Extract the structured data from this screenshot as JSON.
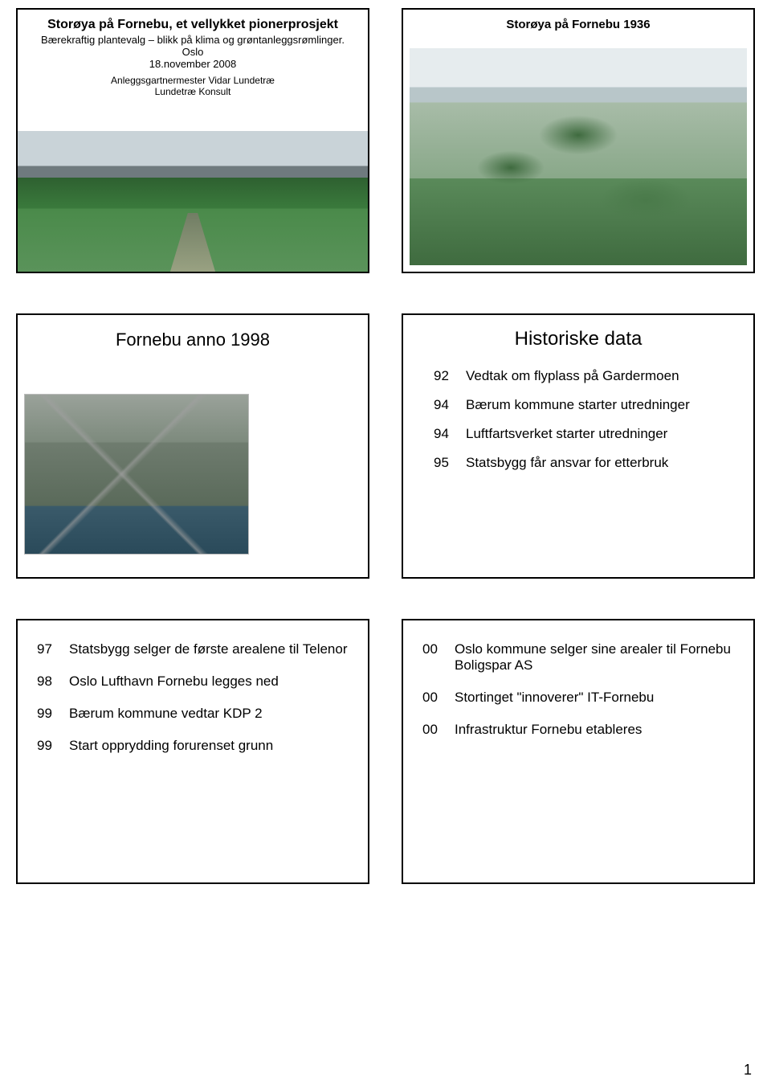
{
  "pageNumber": "1",
  "slide1": {
    "title": "Storøya på Fornebu, et vellykket pionerprosjekt",
    "subtitle": "Bærekraftig plantevalg – blikk på klima og grøntanleggsrømlinger. Oslo",
    "date": "18.november 2008",
    "author": "Anleggsgartnermester Vidar Lundetræ",
    "company": "Lundetræ Konsult"
  },
  "slide2": {
    "caption": "Storøya på Fornebu 1936"
  },
  "slide3": {
    "caption": "Fornebu anno 1998"
  },
  "slide4": {
    "caption": "Historiske data",
    "items": [
      {
        "yr": "92",
        "txt": "Vedtak om flyplass på Gardermoen"
      },
      {
        "yr": "94",
        "txt": "Bærum kommune starter utredninger"
      },
      {
        "yr": "94",
        "txt": "Luftfartsverket starter utredninger"
      },
      {
        "yr": "95",
        "txt": "Statsbygg får ansvar for etterbruk"
      }
    ]
  },
  "slide5": {
    "items": [
      {
        "yr": "97",
        "txt": "Statsbygg selger de første arealene til Telenor"
      },
      {
        "yr": "98",
        "txt": "Oslo Lufthavn Fornebu legges ned"
      },
      {
        "yr": "99",
        "txt": "Bærum kommune vedtar KDP 2"
      },
      {
        "yr": "99",
        "txt": "Start opprydding forurenset grunn"
      }
    ]
  },
  "slide6": {
    "items": [
      {
        "yr": "00",
        "txt": "Oslo kommune selger sine arealer til Fornebu Boligspar AS"
      },
      {
        "yr": "00",
        "txt": "Stortinget \"innoverer\" IT-Fornebu"
      },
      {
        "yr": "00",
        "txt": "Infrastruktur Fornebu etableres"
      }
    ]
  }
}
